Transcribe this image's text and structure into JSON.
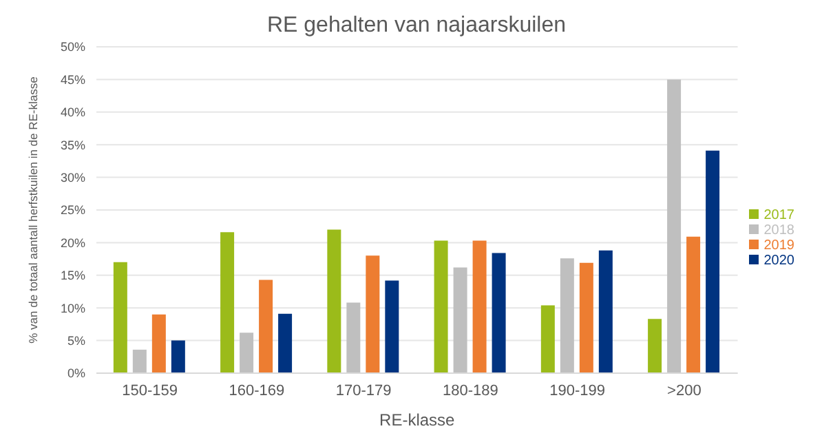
{
  "chart_data": {
    "type": "bar",
    "title": "RE gehalten van najaarskuilen",
    "xlabel": "RE-klasse",
    "ylabel": "% van de totaal aantall herfstkuilen in de RE-klasse",
    "categories": [
      "150-159",
      "160-169",
      "170-179",
      "180-189",
      "190-199",
      ">200"
    ],
    "series": [
      {
        "name": "2017",
        "color": "#9bbb1a",
        "values": [
          17,
          21.6,
          22,
          20.3,
          10.4,
          8.3
        ]
      },
      {
        "name": "2018",
        "color": "#bfbfbf",
        "values": [
          3.6,
          6.2,
          10.8,
          16.2,
          17.6,
          45
        ]
      },
      {
        "name": "2019",
        "color": "#ed7d31",
        "values": [
          9,
          14.3,
          18,
          20.3,
          16.9,
          20.9
        ]
      },
      {
        "name": "2020",
        "color": "#003380",
        "values": [
          5,
          9.1,
          14.2,
          18.4,
          18.8,
          34.1
        ]
      }
    ],
    "ylim": [
      0,
      50
    ],
    "yticks": [
      {
        "value": 0,
        "label": "0%"
      },
      {
        "value": 5,
        "label": "5%"
      },
      {
        "value": 10,
        "label": "10%"
      },
      {
        "value": 15,
        "label": "15%"
      },
      {
        "value": 20,
        "label": "20%"
      },
      {
        "value": 25,
        "label": "25%"
      },
      {
        "value": 30,
        "label": "30%"
      },
      {
        "value": 35,
        "label": "35%"
      },
      {
        "value": 40,
        "label": "40%"
      },
      {
        "value": 45,
        "label": "45%"
      },
      {
        "value": 50,
        "label": "50%"
      }
    ],
    "grid": "y",
    "legend": "right"
  }
}
